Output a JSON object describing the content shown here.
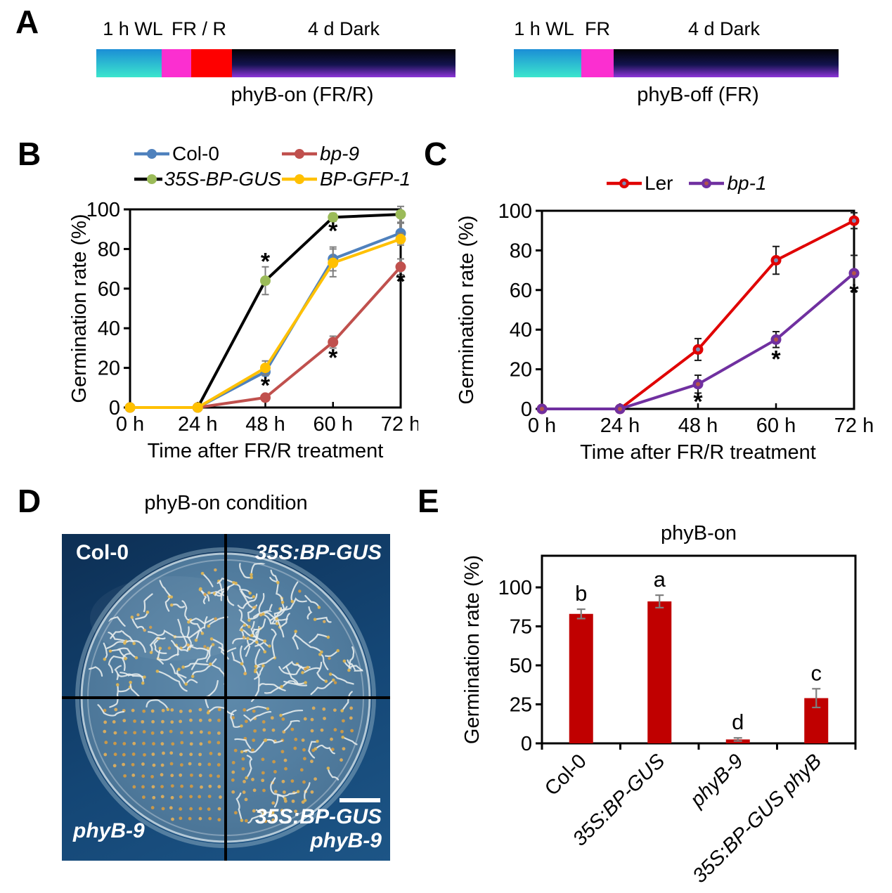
{
  "panels": {
    "A": {
      "letter": "A",
      "left": {
        "labels": [
          "1 h WL",
          "FR / R",
          "4 d Dark"
        ],
        "caption": "phyB-on (FR/R)"
      },
      "right": {
        "labels": [
          "1 h WL",
          "FR",
          "4 d Dark"
        ],
        "caption": "phyB-off (FR)"
      },
      "colors": {
        "wl_top": "#1b8ed6",
        "wl_bottom": "#3ce6cd",
        "fr": "#fb2fd0",
        "r": "#fe0000",
        "dark_top": "#010104",
        "dark_mid": "#13134e",
        "dark_bottom": "#8d35d9"
      }
    },
    "B": {
      "letter": "B"
    },
    "C": {
      "letter": "C"
    },
    "D": {
      "letter": "D",
      "title": "phyB-on condition",
      "labels": {
        "top_left": "Col-0",
        "top_right": "35S:BP-GUS",
        "bottom_left": "phyB-9",
        "bottom_right_1": "35S:BP-GUS",
        "bottom_right_2": "phyB-9"
      },
      "photo_colors": {
        "background": "#144675",
        "dish": "#527e9f",
        "seed_dot": "#cf9a45",
        "seedling": "#e8eeee"
      }
    },
    "E": {
      "letter": "E"
    }
  },
  "chart_data": [
    {
      "id": "B",
      "type": "line",
      "categories": [
        "0 h",
        "24 h",
        "48 h",
        "60 h",
        "72 h"
      ],
      "xlabel": "Time after FR/R treatment",
      "ylabel": "Germination rate (%)",
      "ylim": [
        0,
        100
      ],
      "yticks": [
        0,
        20,
        40,
        60,
        80,
        100
      ],
      "legend_position": "top",
      "err_color": "#7f7f7f",
      "draw_order": [
        2,
        0,
        1,
        3
      ],
      "series": [
        {
          "name": "Col-0",
          "italic": false,
          "color": "#4F81BD",
          "marker": "#4F81BD",
          "values": [
            0,
            0,
            18,
            75,
            88
          ],
          "errors": [
            0,
            0,
            2,
            6,
            5
          ]
        },
        {
          "name": "bp-9",
          "italic": true,
          "color": "#C0504D",
          "marker": "#C0504D",
          "values": [
            0,
            0,
            5,
            33,
            71
          ],
          "errors": [
            0,
            0,
            1.5,
            3,
            4
          ],
          "asterisks": [
            [
              2,
              11
            ],
            [
              3,
              25
            ],
            [
              4,
              63.5
            ]
          ]
        },
        {
          "name": "35S-BP-GUS",
          "italic": true,
          "color": "#000000",
          "marker": "#9BBB59",
          "values": [
            0,
            0,
            64,
            96,
            97.5
          ],
          "errors": [
            0,
            0,
            7,
            2,
            4
          ],
          "asterisks": [
            [
              2,
              73.5
            ],
            [
              3,
              89
            ]
          ]
        },
        {
          "name": "BP-GFP-1",
          "italic": true,
          "color": "#FFC000",
          "marker": "#FFC000",
          "values": [
            0,
            0,
            20,
            73,
            85
          ],
          "errors": [
            0,
            0,
            3.5,
            7,
            3
          ]
        }
      ]
    },
    {
      "id": "C",
      "type": "line",
      "categories": [
        "0 h",
        "24 h",
        "48 h",
        "60 h",
        "72 h"
      ],
      "xlabel": "Time after FR/R treatment",
      "ylabel": "Germination rate (%)",
      "ylim": [
        0,
        100
      ],
      "yticks": [
        0,
        20,
        40,
        60,
        80,
        100
      ],
      "legend_position": "top",
      "err_color": "#1a1a1a",
      "draw_order": [
        0,
        1
      ],
      "series": [
        {
          "name": "Ler",
          "italic": false,
          "color": "#E00000",
          "marker": "#E00000",
          "center": "#7b8cb8",
          "values": [
            0,
            0,
            30,
            75,
            95
          ],
          "errors": [
            0,
            0,
            5.5,
            7,
            4
          ]
        },
        {
          "name": "bp-1",
          "italic": true,
          "color": "#7030A0",
          "marker": "#7030A0",
          "center": "#b2544a",
          "values": [
            0,
            0,
            12.5,
            35,
            68.5
          ],
          "errors": [
            0,
            0,
            4.5,
            4,
            9
          ],
          "asterisks": [
            [
              2,
              3.5
            ],
            [
              3,
              25
            ],
            [
              4,
              58.5
            ]
          ]
        }
      ]
    },
    {
      "id": "E",
      "type": "bar",
      "title": "phyB-on",
      "categories": [
        "Col-0",
        "35S:BP-GUS",
        "phyB-9",
        "35S:BP-GUS phyB"
      ],
      "italics": [
        false,
        true,
        true,
        true
      ],
      "values": [
        83,
        91,
        2.5,
        29
      ],
      "errors": [
        3,
        4,
        1,
        6
      ],
      "letters": [
        "b",
        "a",
        "d",
        "c"
      ],
      "bar_color": "#C00000",
      "err_color": "#7f7f7f",
      "ylabel": "Germination rate (%)",
      "yticks": [
        0,
        25,
        50,
        75,
        100
      ],
      "ylim": [
        0,
        120
      ]
    }
  ]
}
